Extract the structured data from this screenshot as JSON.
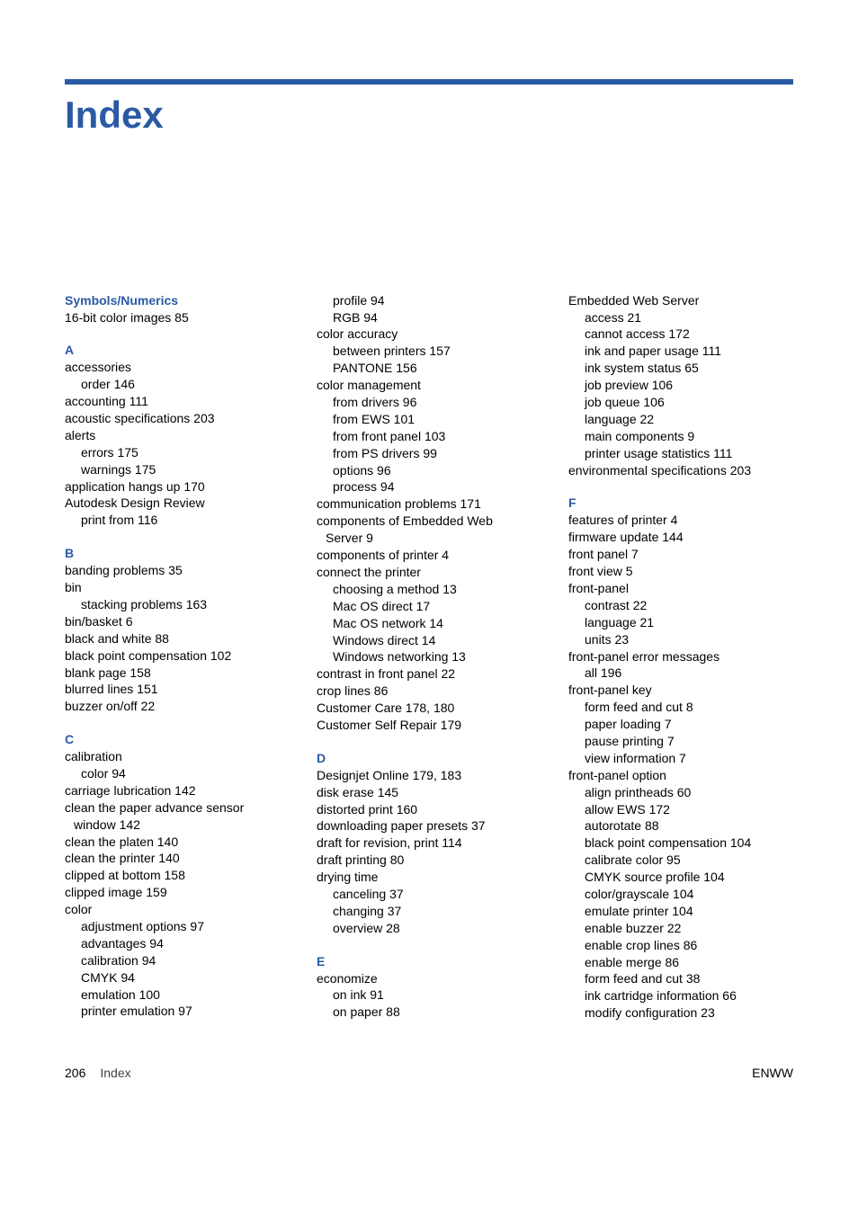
{
  "title": "Index",
  "footer": {
    "page": "206",
    "label": "Index",
    "right": "ENWW"
  },
  "col1": {
    "sections": [
      {
        "heading": "Symbols/Numerics",
        "lines": [
          {
            "t": "16-bit color images   85"
          }
        ]
      },
      {
        "heading": "A",
        "lines": [
          {
            "t": "accessories"
          },
          {
            "t": "order   146",
            "i": 1
          },
          {
            "t": "accounting   111"
          },
          {
            "t": "acoustic specifications   203"
          },
          {
            "t": "alerts"
          },
          {
            "t": "errors   175",
            "i": 1
          },
          {
            "t": "warnings   175",
            "i": 1
          },
          {
            "t": "application hangs up   170"
          },
          {
            "t": "Autodesk Design Review"
          },
          {
            "t": "print from   116",
            "i": 1
          }
        ]
      },
      {
        "heading": "B",
        "lines": [
          {
            "t": "banding problems   35"
          },
          {
            "t": "bin"
          },
          {
            "t": "stacking problems   163",
            "i": 1
          },
          {
            "t": "bin/basket   6"
          },
          {
            "t": "black and white   88"
          },
          {
            "t": "black point compensation   102"
          },
          {
            "t": "blank page   158"
          },
          {
            "t": "blurred lines   151"
          },
          {
            "t": "buzzer on/off   22"
          }
        ]
      },
      {
        "heading": "C",
        "lines": [
          {
            "t": "calibration"
          },
          {
            "t": "color   94",
            "i": 1
          },
          {
            "t": "carriage lubrication   142"
          },
          {
            "t": "clean the paper advance sensor"
          },
          {
            "t": "window   142",
            "i": 2
          },
          {
            "t": "clean the platen   140"
          },
          {
            "t": "clean the printer   140"
          },
          {
            "t": "clipped at bottom   158"
          },
          {
            "t": "clipped image   159"
          },
          {
            "t": "color"
          },
          {
            "t": "adjustment options   97",
            "i": 1
          },
          {
            "t": "advantages   94",
            "i": 1
          },
          {
            "t": "calibration   94",
            "i": 1
          },
          {
            "t": "CMYK   94",
            "i": 1
          },
          {
            "t": "emulation   100",
            "i": 1
          },
          {
            "t": "printer emulation   97",
            "i": 1
          }
        ]
      }
    ]
  },
  "col2": {
    "sections": [
      {
        "lines": [
          {
            "t": "profile   94",
            "i": 1
          },
          {
            "t": "RGB   94",
            "i": 1
          },
          {
            "t": "color accuracy"
          },
          {
            "t": "between printers   157",
            "i": 1
          },
          {
            "t": "PANTONE   156",
            "i": 1
          },
          {
            "t": "color management"
          },
          {
            "t": "from drivers   96",
            "i": 1
          },
          {
            "t": "from EWS   101",
            "i": 1
          },
          {
            "t": "from front panel   103",
            "i": 1
          },
          {
            "t": "from PS drivers   99",
            "i": 1
          },
          {
            "t": "options   96",
            "i": 1
          },
          {
            "t": "process   94",
            "i": 1
          },
          {
            "t": "communication problems   171"
          },
          {
            "t": "components of Embedded Web"
          },
          {
            "t": "Server   9",
            "i": 2
          },
          {
            "t": "components of printer   4"
          },
          {
            "t": "connect the printer"
          },
          {
            "t": "choosing a method   13",
            "i": 1
          },
          {
            "t": "Mac OS direct   17",
            "i": 1
          },
          {
            "t": "Mac OS network   14",
            "i": 1
          },
          {
            "t": "Windows direct   14",
            "i": 1
          },
          {
            "t": "Windows networking   13",
            "i": 1
          },
          {
            "t": "contrast in front panel   22"
          },
          {
            "t": "crop lines   86"
          },
          {
            "t": "Customer Care   178, 180"
          },
          {
            "t": "Customer Self Repair   179"
          }
        ]
      },
      {
        "heading": "D",
        "lines": [
          {
            "t": "Designjet Online   179, 183"
          },
          {
            "t": "disk erase   145"
          },
          {
            "t": "distorted print   160"
          },
          {
            "t": "downloading paper presets   37"
          },
          {
            "t": "draft for revision, print   114"
          },
          {
            "t": "draft printing   80"
          },
          {
            "t": "drying time"
          },
          {
            "t": "canceling   37",
            "i": 1
          },
          {
            "t": "changing   37",
            "i": 1
          },
          {
            "t": "overview   28",
            "i": 1
          }
        ]
      },
      {
        "heading": "E",
        "lines": [
          {
            "t": "economize"
          },
          {
            "t": "on ink   91",
            "i": 1
          },
          {
            "t": "on paper   88",
            "i": 1
          }
        ]
      }
    ]
  },
  "col3": {
    "sections": [
      {
        "lines": [
          {
            "t": "Embedded Web Server"
          },
          {
            "t": "access   21",
            "i": 1
          },
          {
            "t": "cannot access   172",
            "i": 1
          },
          {
            "t": "ink and paper usage   111",
            "i": 1
          },
          {
            "t": "ink system status   65",
            "i": 1
          },
          {
            "t": "job preview   106",
            "i": 1
          },
          {
            "t": "job queue   106",
            "i": 1
          },
          {
            "t": "language   22",
            "i": 1
          },
          {
            "t": "main components   9",
            "i": 1
          },
          {
            "t": "printer usage statistics   111",
            "i": 1
          },
          {
            "t": "environmental specifications   203"
          }
        ]
      },
      {
        "heading": "F",
        "lines": [
          {
            "t": "features of printer   4"
          },
          {
            "t": "firmware update   144"
          },
          {
            "t": "front panel   7"
          },
          {
            "t": "front view   5"
          },
          {
            "t": "front-panel"
          },
          {
            "t": "contrast   22",
            "i": 1
          },
          {
            "t": "language   21",
            "i": 1
          },
          {
            "t": "units   23",
            "i": 1
          },
          {
            "t": "front-panel error messages"
          },
          {
            "t": "all   196",
            "i": 1
          },
          {
            "t": "front-panel key"
          },
          {
            "t": "form feed and cut   8",
            "i": 1
          },
          {
            "t": "paper loading   7",
            "i": 1
          },
          {
            "t": "pause printing   7",
            "i": 1
          },
          {
            "t": "view information   7",
            "i": 1
          },
          {
            "t": "front-panel option"
          },
          {
            "t": "align printheads   60",
            "i": 1
          },
          {
            "t": "allow EWS   172",
            "i": 1
          },
          {
            "t": "autorotate   88",
            "i": 1
          },
          {
            "t": "black point compensation   104",
            "i": 1
          },
          {
            "t": "calibrate color   95",
            "i": 1
          },
          {
            "t": "CMYK source profile   104",
            "i": 1
          },
          {
            "t": "color/grayscale   104",
            "i": 1
          },
          {
            "t": "emulate printer   104",
            "i": 1
          },
          {
            "t": "enable buzzer   22",
            "i": 1
          },
          {
            "t": "enable crop lines   86",
            "i": 1
          },
          {
            "t": "enable merge   86",
            "i": 1
          },
          {
            "t": "form feed and cut   38",
            "i": 1
          },
          {
            "t": "ink cartridge information   66",
            "i": 1
          },
          {
            "t": "modify configuration   23",
            "i": 1
          }
        ]
      }
    ]
  }
}
